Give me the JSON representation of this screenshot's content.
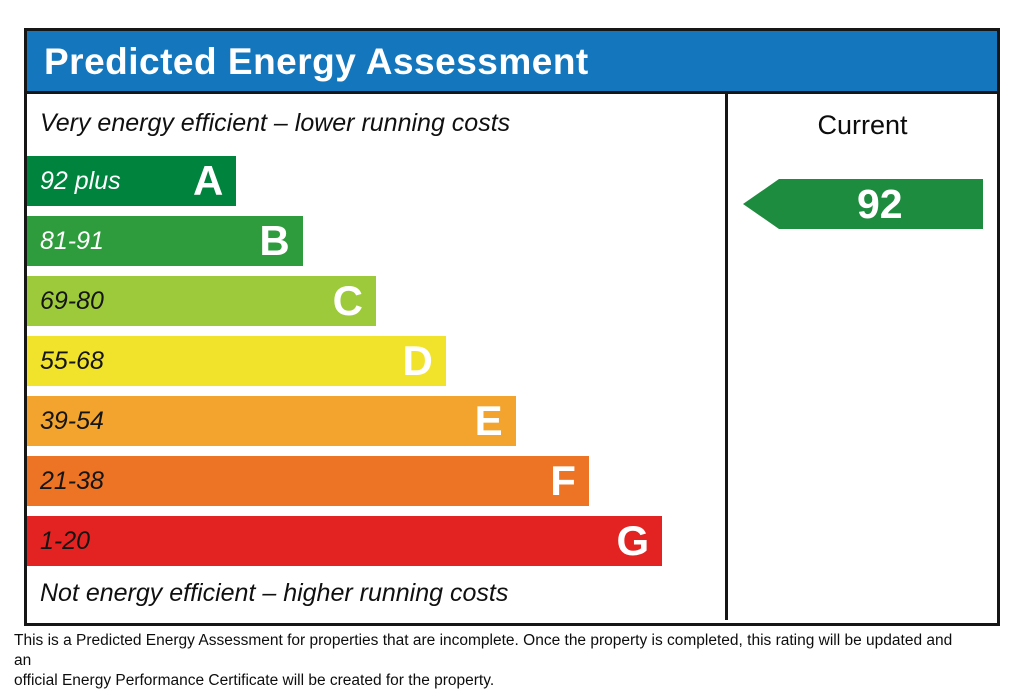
{
  "header": {
    "title": "Predicted Energy Assessment",
    "bg_color": "#1477BD"
  },
  "chart_data": {
    "type": "bar",
    "title": "Predicted Energy Assessment",
    "top_caption": "Very energy efficient – lower running costs",
    "bottom_caption": "Not energy efficient – higher running costs",
    "bands": [
      {
        "letter": "A",
        "range": "92 plus",
        "color": "#00843D",
        "label_color": "#ffffff",
        "width_pct": 30
      },
      {
        "letter": "B",
        "range": "81-91",
        "color": "#2E9B3C",
        "label_color": "#ffffff",
        "width_pct": 39.5
      },
      {
        "letter": "C",
        "range": "69-80",
        "color": "#9DCA3A",
        "label_color": "#151515",
        "width_pct": 50
      },
      {
        "letter": "D",
        "range": "55-68",
        "color": "#F1E32C",
        "label_color": "#151515",
        "width_pct": 60
      },
      {
        "letter": "E",
        "range": "39-54",
        "color": "#F2A42E",
        "label_color": "#151515",
        "width_pct": 70
      },
      {
        "letter": "F",
        "range": "21-38",
        "color": "#EE7425",
        "label_color": "#151515",
        "width_pct": 80.5
      },
      {
        "letter": "G",
        "range": "1-20",
        "color": "#E32322",
        "label_color": "#151515",
        "width_pct": 91
      }
    ],
    "columns": [
      {
        "label": "Current",
        "value": "92",
        "band": "A",
        "arrow_color": "#1E8C3E"
      }
    ]
  },
  "current": {
    "label": "Current",
    "value": "92",
    "arrow_color": "#1E8C3E"
  },
  "footer": {
    "line1": "This is a Predicted Energy Assessment for properties that are incomplete. Once the property is completed, this rating will be updated and an",
    "line2": "official Energy Performance Certificate will be created for the property."
  }
}
